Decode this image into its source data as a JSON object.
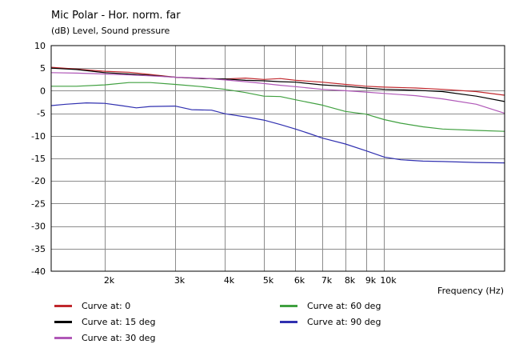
{
  "chart_data": {
    "type": "line",
    "title": "Mic Polar - Hor. norm. far",
    "subtitle": "(dB)  Level, Sound pressure",
    "xlabel": "Frequency  (Hz)",
    "ylabel": "(dB)",
    "xscale": "log",
    "xlim": [
      1470,
      20000
    ],
    "ylim": [
      -40,
      10
    ],
    "grid": true,
    "y_ticks": [
      10,
      5,
      0,
      -5,
      -10,
      -15,
      -20,
      -25,
      -30,
      -35,
      -40
    ],
    "x_ticks": [
      {
        "value": 2000,
        "label": "2k"
      },
      {
        "value": 3000,
        "label": "3k"
      },
      {
        "value": 4000,
        "label": "4k"
      },
      {
        "value": 5000,
        "label": "5k"
      },
      {
        "value": 6000,
        "label": "6k"
      },
      {
        "value": 7000,
        "label": "7k"
      },
      {
        "value": 8000,
        "label": "8k"
      },
      {
        "value": 9000,
        "label": "9k"
      },
      {
        "value": 10000,
        "label": "10k"
      }
    ],
    "legend_position": "bottom",
    "series": [
      {
        "name": "Curve at: 0",
        "color": "#c0282d",
        "x": [
          1470,
          1700,
          2000,
          2300,
          2600,
          3000,
          3500,
          4000,
          4500,
          5000,
          5500,
          6000,
          7000,
          8000,
          9000,
          10000,
          12000,
          14000,
          17000,
          20000
        ],
        "y": [
          5.2,
          4.8,
          4.3,
          4.1,
          3.6,
          3.0,
          2.7,
          2.6,
          2.8,
          2.5,
          2.7,
          2.3,
          1.9,
          1.4,
          1.0,
          0.8,
          0.6,
          0.3,
          -0.2,
          -1.0
        ]
      },
      {
        "name": "Curve at: 15 deg",
        "color": "#000000",
        "x": [
          1470,
          1700,
          2000,
          2300,
          2600,
          3000,
          3500,
          4000,
          4500,
          5000,
          5500,
          6000,
          7000,
          8000,
          9000,
          10000,
          12000,
          14000,
          17000,
          20000
        ],
        "y": [
          5.0,
          4.7,
          4.0,
          3.7,
          3.4,
          3.0,
          2.7,
          2.6,
          2.3,
          2.2,
          2.0,
          1.9,
          1.3,
          1.0,
          0.6,
          0.3,
          0.1,
          -0.2,
          -1.2,
          -2.4
        ]
      },
      {
        "name": "Curve at: 30 deg",
        "color": "#b058b8",
        "x": [
          1470,
          1700,
          2000,
          2300,
          2600,
          3000,
          3500,
          4000,
          4500,
          5000,
          5500,
          6000,
          7000,
          8000,
          9000,
          10000,
          12000,
          14000,
          17000,
          20000
        ],
        "y": [
          4.0,
          3.9,
          3.7,
          3.5,
          3.3,
          3.0,
          2.8,
          2.4,
          2.0,
          1.6,
          1.2,
          0.9,
          0.3,
          0.0,
          -0.3,
          -0.6,
          -1.1,
          -1.8,
          -3.0,
          -5.0
        ]
      },
      {
        "name": "Curve at: 60 deg",
        "color": "#40a040",
        "x": [
          1470,
          1700,
          2000,
          2300,
          2600,
          3000,
          3500,
          4000,
          4500,
          5000,
          5500,
          6000,
          7000,
          8000,
          9000,
          10000,
          11000,
          12500,
          14000,
          17000,
          20000
        ],
        "y": [
          1.0,
          1.0,
          1.3,
          1.8,
          1.8,
          1.4,
          0.9,
          0.3,
          -0.4,
          -1.2,
          -1.3,
          -2.0,
          -3.2,
          -4.6,
          -5.2,
          -6.4,
          -7.2,
          -8.0,
          -8.5,
          -8.8,
          -9.0
        ]
      },
      {
        "name": "Curve at: 90 deg",
        "color": "#3030b0",
        "x": [
          1470,
          1600,
          1800,
          2000,
          2200,
          2400,
          2600,
          3000,
          3300,
          3700,
          4000,
          4500,
          5000,
          5500,
          6000,
          6500,
          7000,
          8000,
          9000,
          10000,
          11000,
          12500,
          14000,
          17000,
          20000
        ],
        "y": [
          -3.3,
          -3.0,
          -2.7,
          -2.8,
          -3.3,
          -3.8,
          -3.5,
          -3.4,
          -4.2,
          -4.3,
          -5.1,
          -5.8,
          -6.5,
          -7.5,
          -8.5,
          -9.5,
          -10.5,
          -11.8,
          -13.3,
          -14.7,
          -15.3,
          -15.6,
          -15.7,
          -15.9,
          -16.0
        ]
      }
    ]
  }
}
